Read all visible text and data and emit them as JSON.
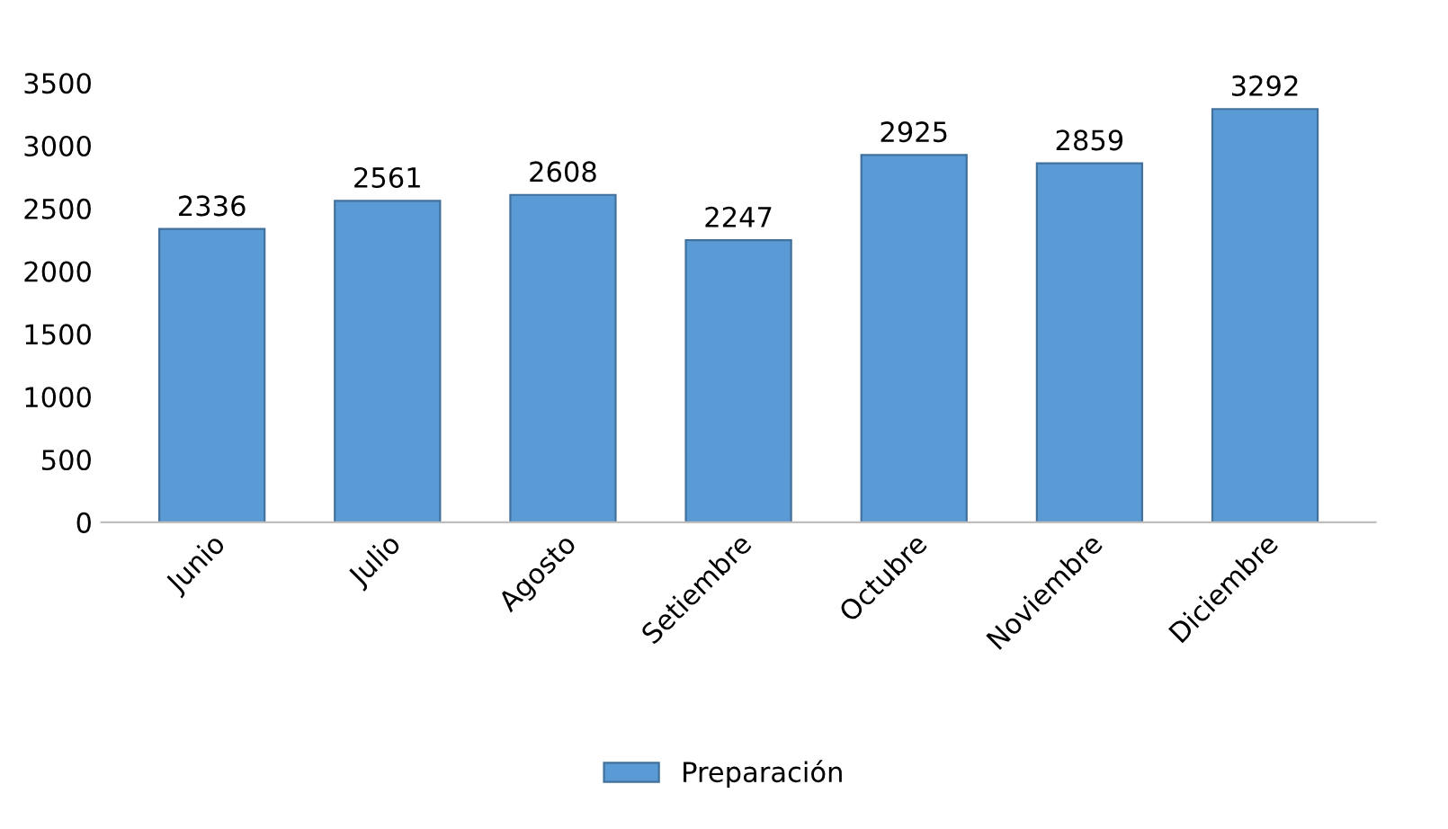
{
  "chart_data": {
    "type": "bar",
    "categories": [
      "Junio",
      "Julio",
      "Agosto",
      "Setiembre",
      "Octubre",
      "Noviembre",
      "Diciembre"
    ],
    "series": [
      {
        "name": "Preparación",
        "color": "#5b9bd5",
        "values": [
          2336,
          2561,
          2608,
          2247,
          2925,
          2859,
          3292
        ]
      }
    ],
    "ylim": [
      0,
      3500
    ],
    "yticks": [
      0,
      500,
      1000,
      1500,
      2000,
      2500,
      3000,
      3500
    ],
    "data_labels": true,
    "legend": "bottom",
    "grid": false
  }
}
